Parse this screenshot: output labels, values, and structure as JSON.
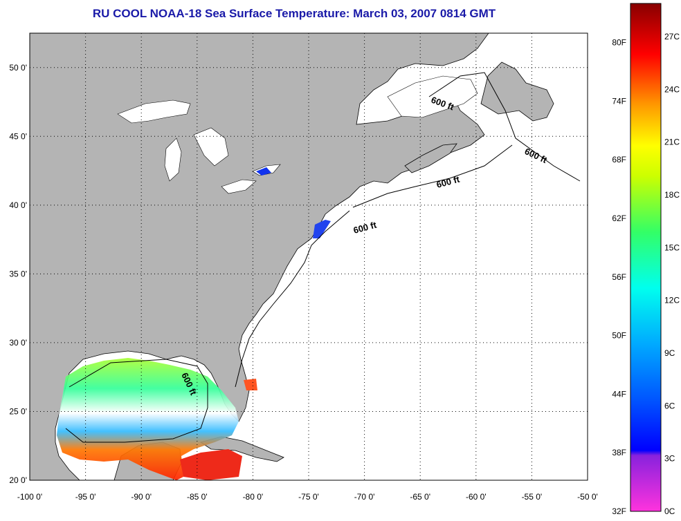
{
  "title": "RU COOL  NOAA-18  Sea Surface Temperature:  March 03, 2007 0814 GMT",
  "map": {
    "lon_range": [
      -100,
      -50
    ],
    "lat_range": [
      20,
      52.5
    ],
    "lon_ticks": [
      "-100 0'",
      "-95 0'",
      "-90 0'",
      "-85 0'",
      "-80 0'",
      "-75 0'",
      "-70 0'",
      "-65 0'",
      "-60 0'",
      "-55 0'",
      "-50 0'"
    ],
    "lat_ticks": [
      "20 0'",
      "25 0'",
      "30 0'",
      "35 0'",
      "40 0'",
      "45 0'",
      "50 0'"
    ],
    "grid": true,
    "land_color": "#b4b4b4",
    "ocean_color": "#ffffff",
    "bathymetry_labels": [
      "600 ft",
      "600 ft",
      "600 ft",
      "600 ft",
      "600 ft"
    ]
  },
  "colorbar": {
    "fahrenheit_labels": [
      "32F",
      "38F",
      "44F",
      "50F",
      "56F",
      "62F",
      "68F",
      "74F",
      "80F"
    ],
    "celsius_labels": [
      "0C",
      "3C",
      "6C",
      "9C",
      "12C",
      "15C",
      "18C",
      "21C",
      "24C",
      "27C"
    ],
    "colors": [
      "#ff33cc",
      "#8822dd",
      "#0000ff",
      "#00aaff",
      "#00ffff",
      "#33ff66",
      "#ffff00",
      "#ff9900",
      "#ff0000",
      "#880000"
    ]
  }
}
